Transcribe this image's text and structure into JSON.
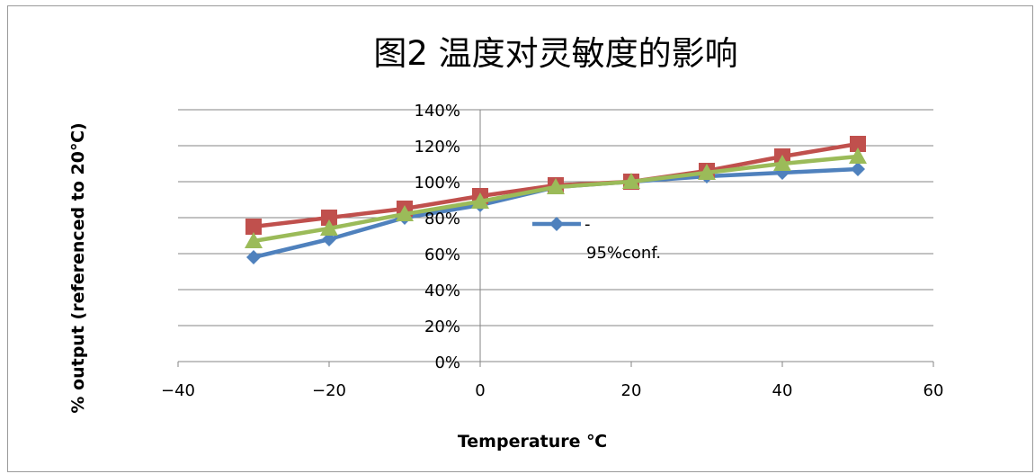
{
  "chart_data": {
    "type": "line",
    "title": "图2 温度对灵敏度的影响",
    "xlabel": "Temperature ℃",
    "ylabel": "% output (referenced to 20℃)",
    "xlim": [
      -40,
      60
    ],
    "xticks": [
      -40,
      -20,
      0,
      20,
      40,
      60
    ],
    "xtick_labels": [
      "−40",
      "−20",
      "0",
      "20",
      "40",
      "60"
    ],
    "ylim": [
      0,
      140
    ],
    "yticks": [
      0,
      20,
      40,
      60,
      80,
      100,
      120,
      140
    ],
    "ytick_labels": [
      "0%",
      "20%",
      "40%",
      "60%",
      "80%",
      "100%",
      "120%",
      "140%"
    ],
    "grid": true,
    "x": [
      -30,
      -20,
      -10,
      0,
      10,
      20,
      30,
      40,
      50
    ],
    "series": [
      {
        "name": "-",
        "legend_text": "95%conf.",
        "color": "#4f81bd",
        "marker": "diamond",
        "values": [
          58,
          68,
          80,
          87,
          97,
          100,
          103,
          105,
          107
        ]
      },
      {
        "color": "#c0504d",
        "marker": "square",
        "values": [
          75,
          80,
          85,
          92,
          98,
          100,
          106,
          114,
          121
        ]
      },
      {
        "color": "#9bbb59",
        "marker": "triangle",
        "values": [
          67,
          74,
          82,
          89,
          97,
          100,
          105,
          110,
          114
        ]
      }
    ]
  }
}
